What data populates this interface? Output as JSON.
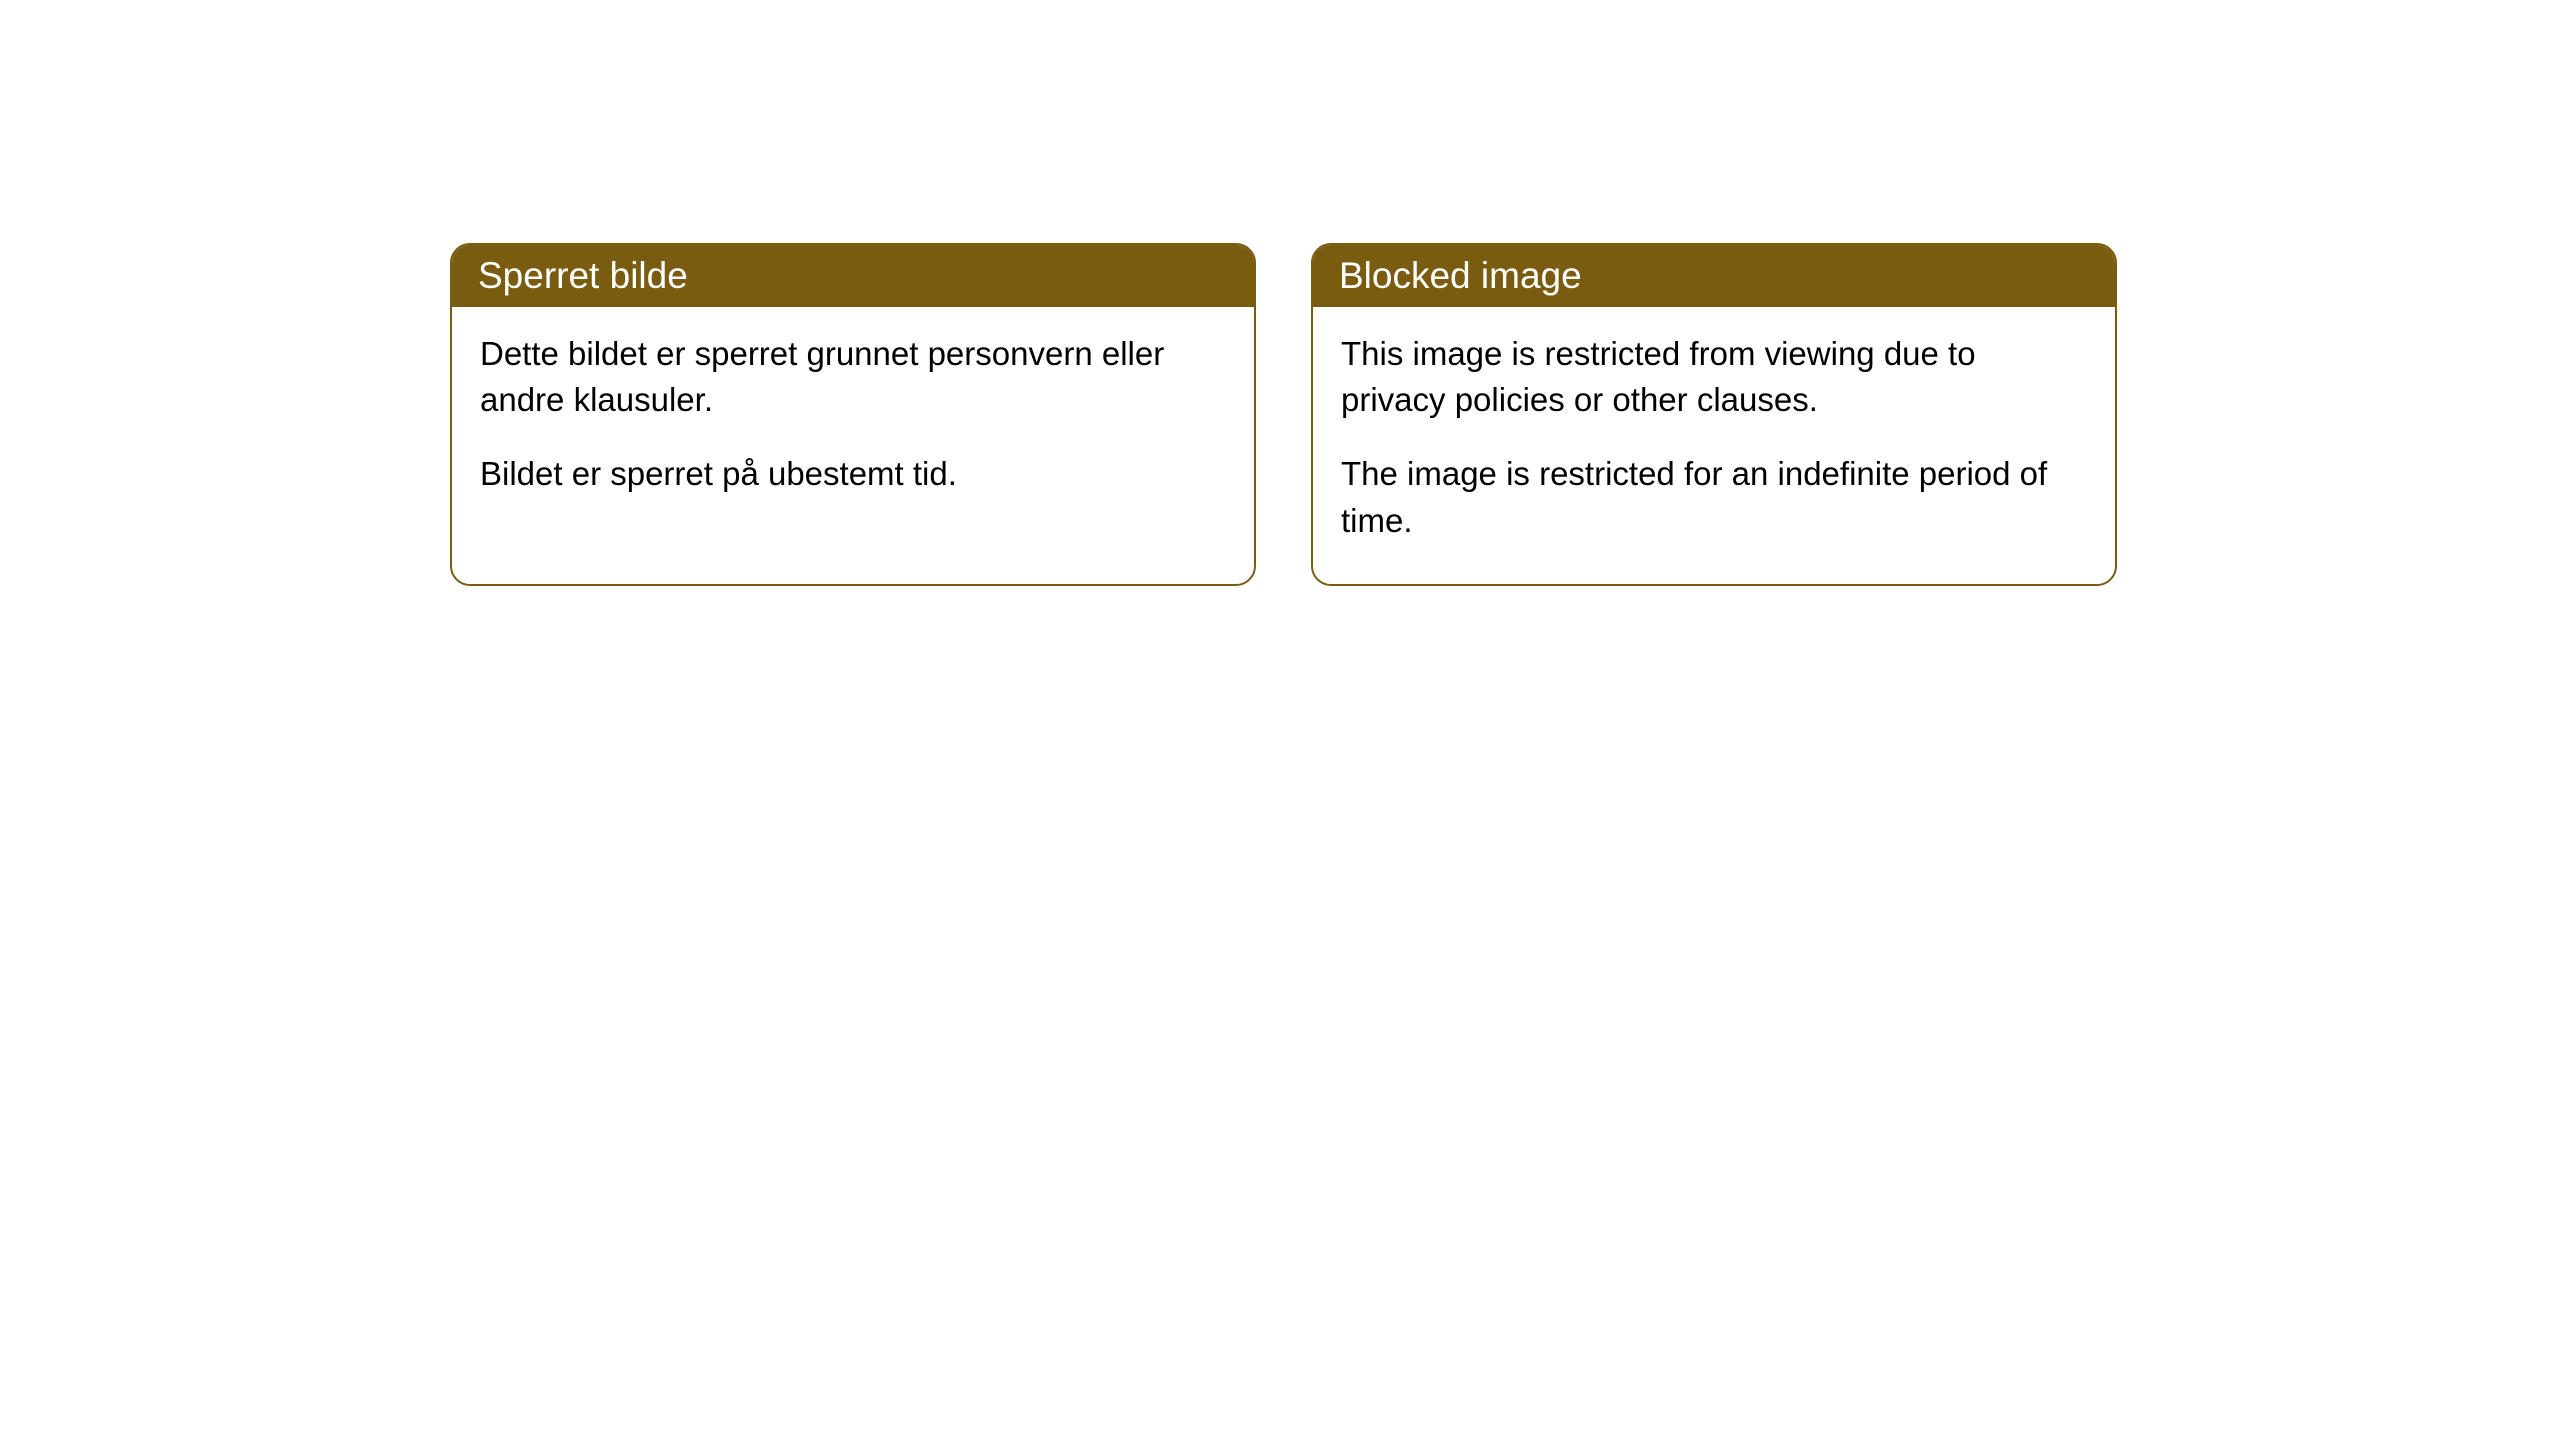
{
  "cards": [
    {
      "title": "Sperret bilde",
      "paragraph1": "Dette bildet er sperret grunnet personvern eller andre klausuler.",
      "paragraph2": "Bildet er sperret på ubestemt tid."
    },
    {
      "title": "Blocked image",
      "paragraph1": "This image is restricted from viewing due to privacy policies or other clauses.",
      "paragraph2": "The image is restricted for an indefinite period of time."
    }
  ],
  "style": {
    "header_bg_color": "#7a5c11",
    "header_text_color": "#ffffff",
    "border_color": "#7a5c11",
    "body_bg_color": "#ffffff",
    "body_text_color": "#000000",
    "border_radius": 20,
    "header_fontsize": 37,
    "body_fontsize": 33
  }
}
